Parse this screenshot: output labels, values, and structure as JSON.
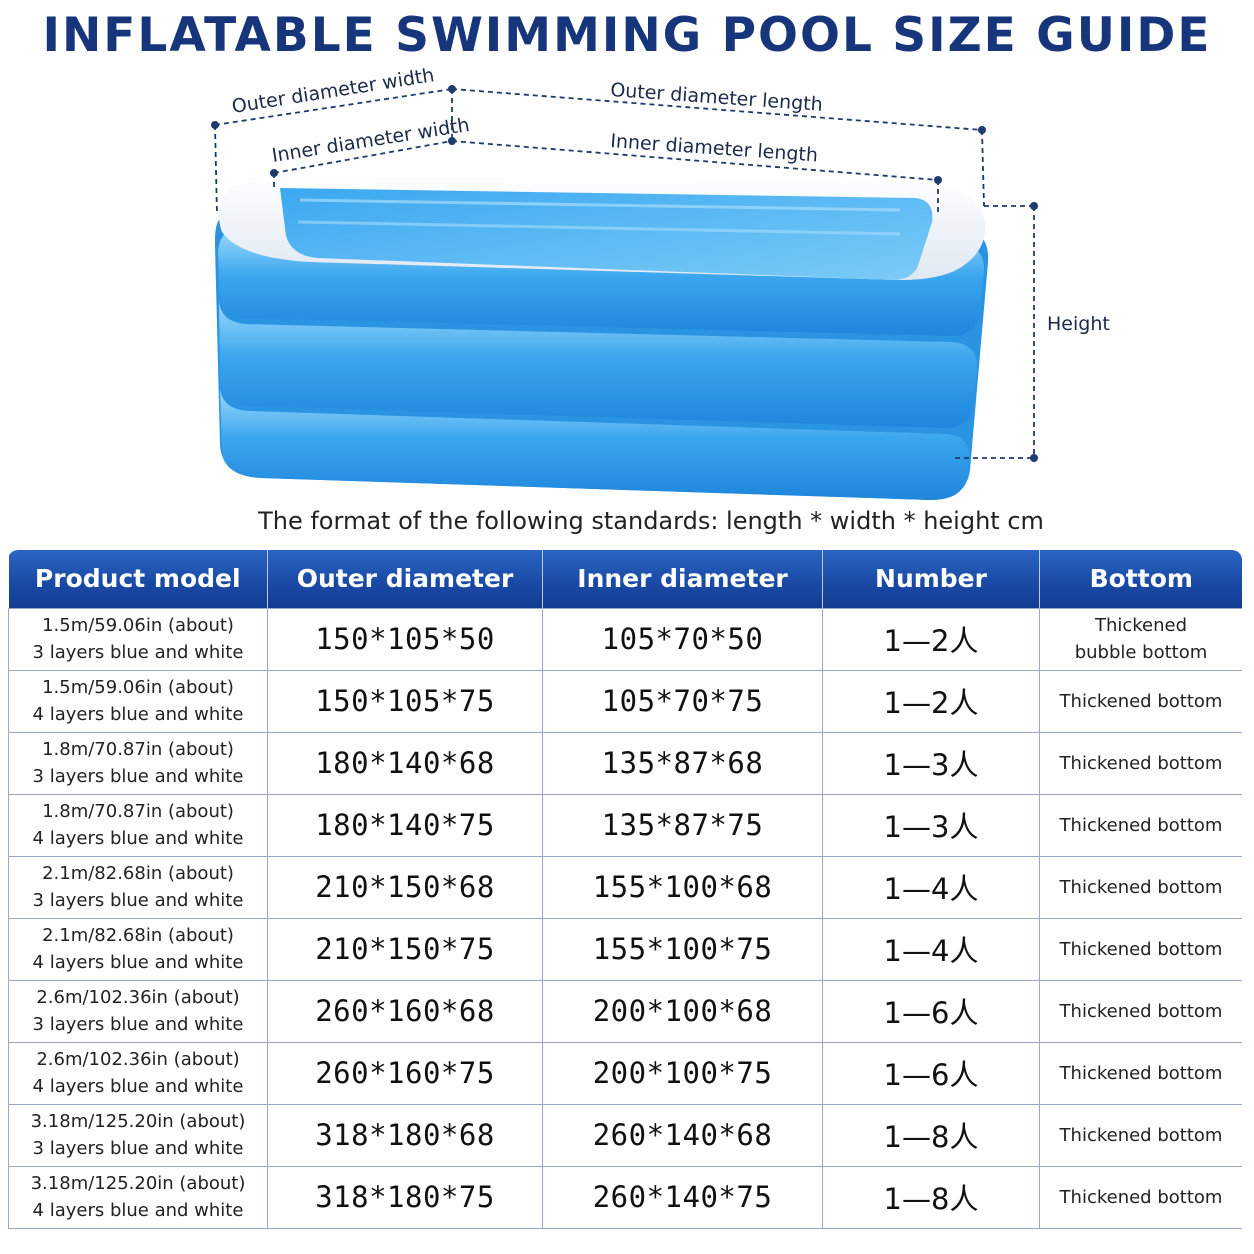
{
  "title": "INFLATABLE SWIMMING POOL SIZE GUIDE",
  "diagram": {
    "outer_width_label": "Outer diameter width",
    "outer_length_label": "Outer diameter length",
    "inner_width_label": "Inner diameter width",
    "inner_length_label": "Inner diameter length",
    "height_label": "Height",
    "colors": {
      "pool_blue": "#2f9be8",
      "pool_light": "#8fd2fa",
      "rim_white": "#f3f6fa",
      "dim_line": "#1e3a6e"
    }
  },
  "format_note": "The format of the following standards: length * width * height cm",
  "table": {
    "headers": [
      "Product model",
      "Outer diameter",
      "Inner diameter",
      "Number",
      "Bottom"
    ],
    "rows": [
      {
        "model_line1": "1.5m/59.06in (about)",
        "model_line2": "3 layers blue and white",
        "outer": "150*105*50",
        "inner": "105*70*50",
        "number": "1—2人",
        "bottom_line1": "Thickened",
        "bottom_line2": "bubble bottom"
      },
      {
        "model_line1": "1.5m/59.06in (about)",
        "model_line2": "4 layers blue and white",
        "outer": "150*105*75",
        "inner": "105*70*75",
        "number": "1—2人",
        "bottom_line1": "Thickened bottom",
        "bottom_line2": ""
      },
      {
        "model_line1": "1.8m/70.87in (about)",
        "model_line2": "3 layers blue and white",
        "outer": "180*140*68",
        "inner": "135*87*68",
        "number": "1—3人",
        "bottom_line1": "Thickened bottom",
        "bottom_line2": ""
      },
      {
        "model_line1": "1.8m/70.87in (about)",
        "model_line2": "4 layers blue and white",
        "outer": "180*140*75",
        "inner": "135*87*75",
        "number": "1—3人",
        "bottom_line1": "Thickened bottom",
        "bottom_line2": ""
      },
      {
        "model_line1": "2.1m/82.68in (about)",
        "model_line2": "3 layers blue and white",
        "outer": "210*150*68",
        "inner": "155*100*68",
        "number": "1—4人",
        "bottom_line1": "Thickened bottom",
        "bottom_line2": ""
      },
      {
        "model_line1": "2.1m/82.68in (about)",
        "model_line2": "4 layers blue and white",
        "outer": "210*150*75",
        "inner": "155*100*75",
        "number": "1—4人",
        "bottom_line1": "Thickened bottom",
        "bottom_line2": ""
      },
      {
        "model_line1": "2.6m/102.36in (about)",
        "model_line2": "3 layers blue and white",
        "outer": "260*160*68",
        "inner": "200*100*68",
        "number": "1—6人",
        "bottom_line1": "Thickened bottom",
        "bottom_line2": ""
      },
      {
        "model_line1": "2.6m/102.36in (about)",
        "model_line2": "4 layers blue and white",
        "outer": "260*160*75",
        "inner": "200*100*75",
        "number": "1—6人",
        "bottom_line1": "Thickened bottom",
        "bottom_line2": ""
      },
      {
        "model_line1": "3.18m/125.20in (about)",
        "model_line2": "3 layers blue and white",
        "outer": "318*180*68",
        "inner": "260*140*68",
        "number": "1—8人",
        "bottom_line1": "Thickened bottom",
        "bottom_line2": ""
      },
      {
        "model_line1": "3.18m/125.20in (about)",
        "model_line2": "4 layers blue and white",
        "outer": "318*180*75",
        "inner": "260*140*75",
        "number": "1—8人",
        "bottom_line1": "Thickened bottom",
        "bottom_line2": ""
      }
    ]
  }
}
